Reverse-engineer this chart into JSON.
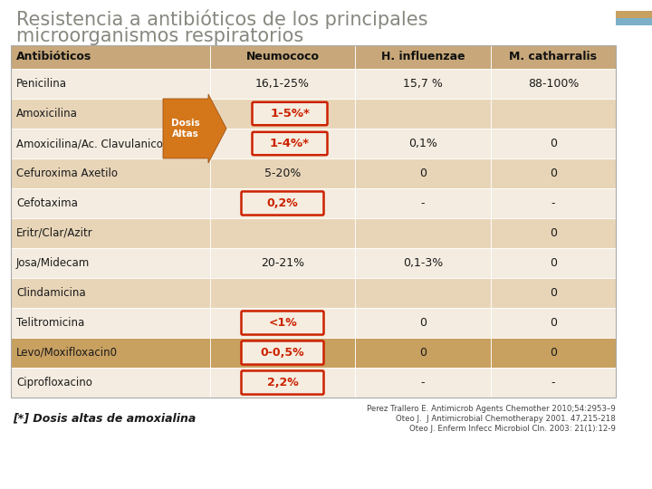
{
  "title_line1": "Resistencia a antibióticos de los principales",
  "title_line2": "microorganismos respiratorios",
  "title_fontsize": 15,
  "title_color": "#888880",
  "bg_color": "#ffffff",
  "header_bg": "#c8a87a",
  "odd_row_bg": "#e8d5b8",
  "even_row_bg": "#f4ece0",
  "highlight_row_bg": "#c8a060",
  "col_headers": [
    "Antibióticos",
    "Neumococo",
    "H. influenzae",
    "M. catharralis"
  ],
  "rows": [
    {
      "name": "Penicilina",
      "neuro": "16,1-25%",
      "hinf": "15,7 %",
      "mcat": "88-100%",
      "neuro_red": false,
      "row_highlight": false
    },
    {
      "name": "Amoxicilina",
      "neuro": "1-5%*",
      "hinf": "",
      "mcat": "",
      "neuro_red": true,
      "row_highlight": false,
      "arrow": true
    },
    {
      "name": "Amoxicilina/Ac. Clavulanico",
      "neuro": "1-4%*",
      "hinf": "0,1%",
      "mcat": "0",
      "neuro_red": true,
      "row_highlight": false,
      "arrow": true
    },
    {
      "name": "Cefuroxima Axetilo",
      "neuro": "5-20%",
      "hinf": "0",
      "mcat": "0",
      "neuro_red": false,
      "row_highlight": false,
      "arrow": false
    },
    {
      "name": "Cefotaxima",
      "neuro": "0,2%",
      "hinf": "-",
      "mcat": "-",
      "neuro_red": true,
      "row_highlight": false,
      "arrow": false
    },
    {
      "name": "Eritr/Clar/Azitr",
      "neuro": "",
      "hinf": "",
      "mcat": "0",
      "neuro_red": false,
      "row_highlight": false,
      "arrow": false
    },
    {
      "name": "Josa/Midecam",
      "neuro": "20-21%",
      "hinf": "0,1-3%",
      "mcat": "0",
      "neuro_red": false,
      "row_highlight": false,
      "arrow": false
    },
    {
      "name": "Clindamicina",
      "neuro": "",
      "hinf": "",
      "mcat": "0",
      "neuro_red": false,
      "row_highlight": false,
      "arrow": false
    },
    {
      "name": "Telitromicina",
      "neuro": "<1%",
      "hinf": "0",
      "mcat": "0",
      "neuro_red": true,
      "row_highlight": false,
      "arrow": false
    },
    {
      "name": "Levo/Moxifloxacin0",
      "neuro": "0-0,5%",
      "hinf": "0",
      "mcat": "0",
      "neuro_red": true,
      "row_highlight": true,
      "arrow": false
    },
    {
      "name": "Ciprofloxacino",
      "neuro": "2,2%",
      "hinf": "-",
      "mcat": "-",
      "neuro_red": true,
      "row_highlight": false,
      "arrow": false
    }
  ],
  "footnote": "[*] Dosis altas de amoxialina",
  "refs": [
    "Perez Trallero E. Antimicrob Agents Chemother 2010;54:2953–9",
    "Oteo J.  J Antimicrobial Chemotherapy 2001. 47,215-218",
    "Oteo J. Enferm Infecc Microbiol Cln. 2003: 21(1):12-9"
  ],
  "arrow_label_line1": "Dosis",
  "arrow_label_line2": "Altas",
  "arrow_color": "#d4761a",
  "red_box_color": "#cc2200"
}
